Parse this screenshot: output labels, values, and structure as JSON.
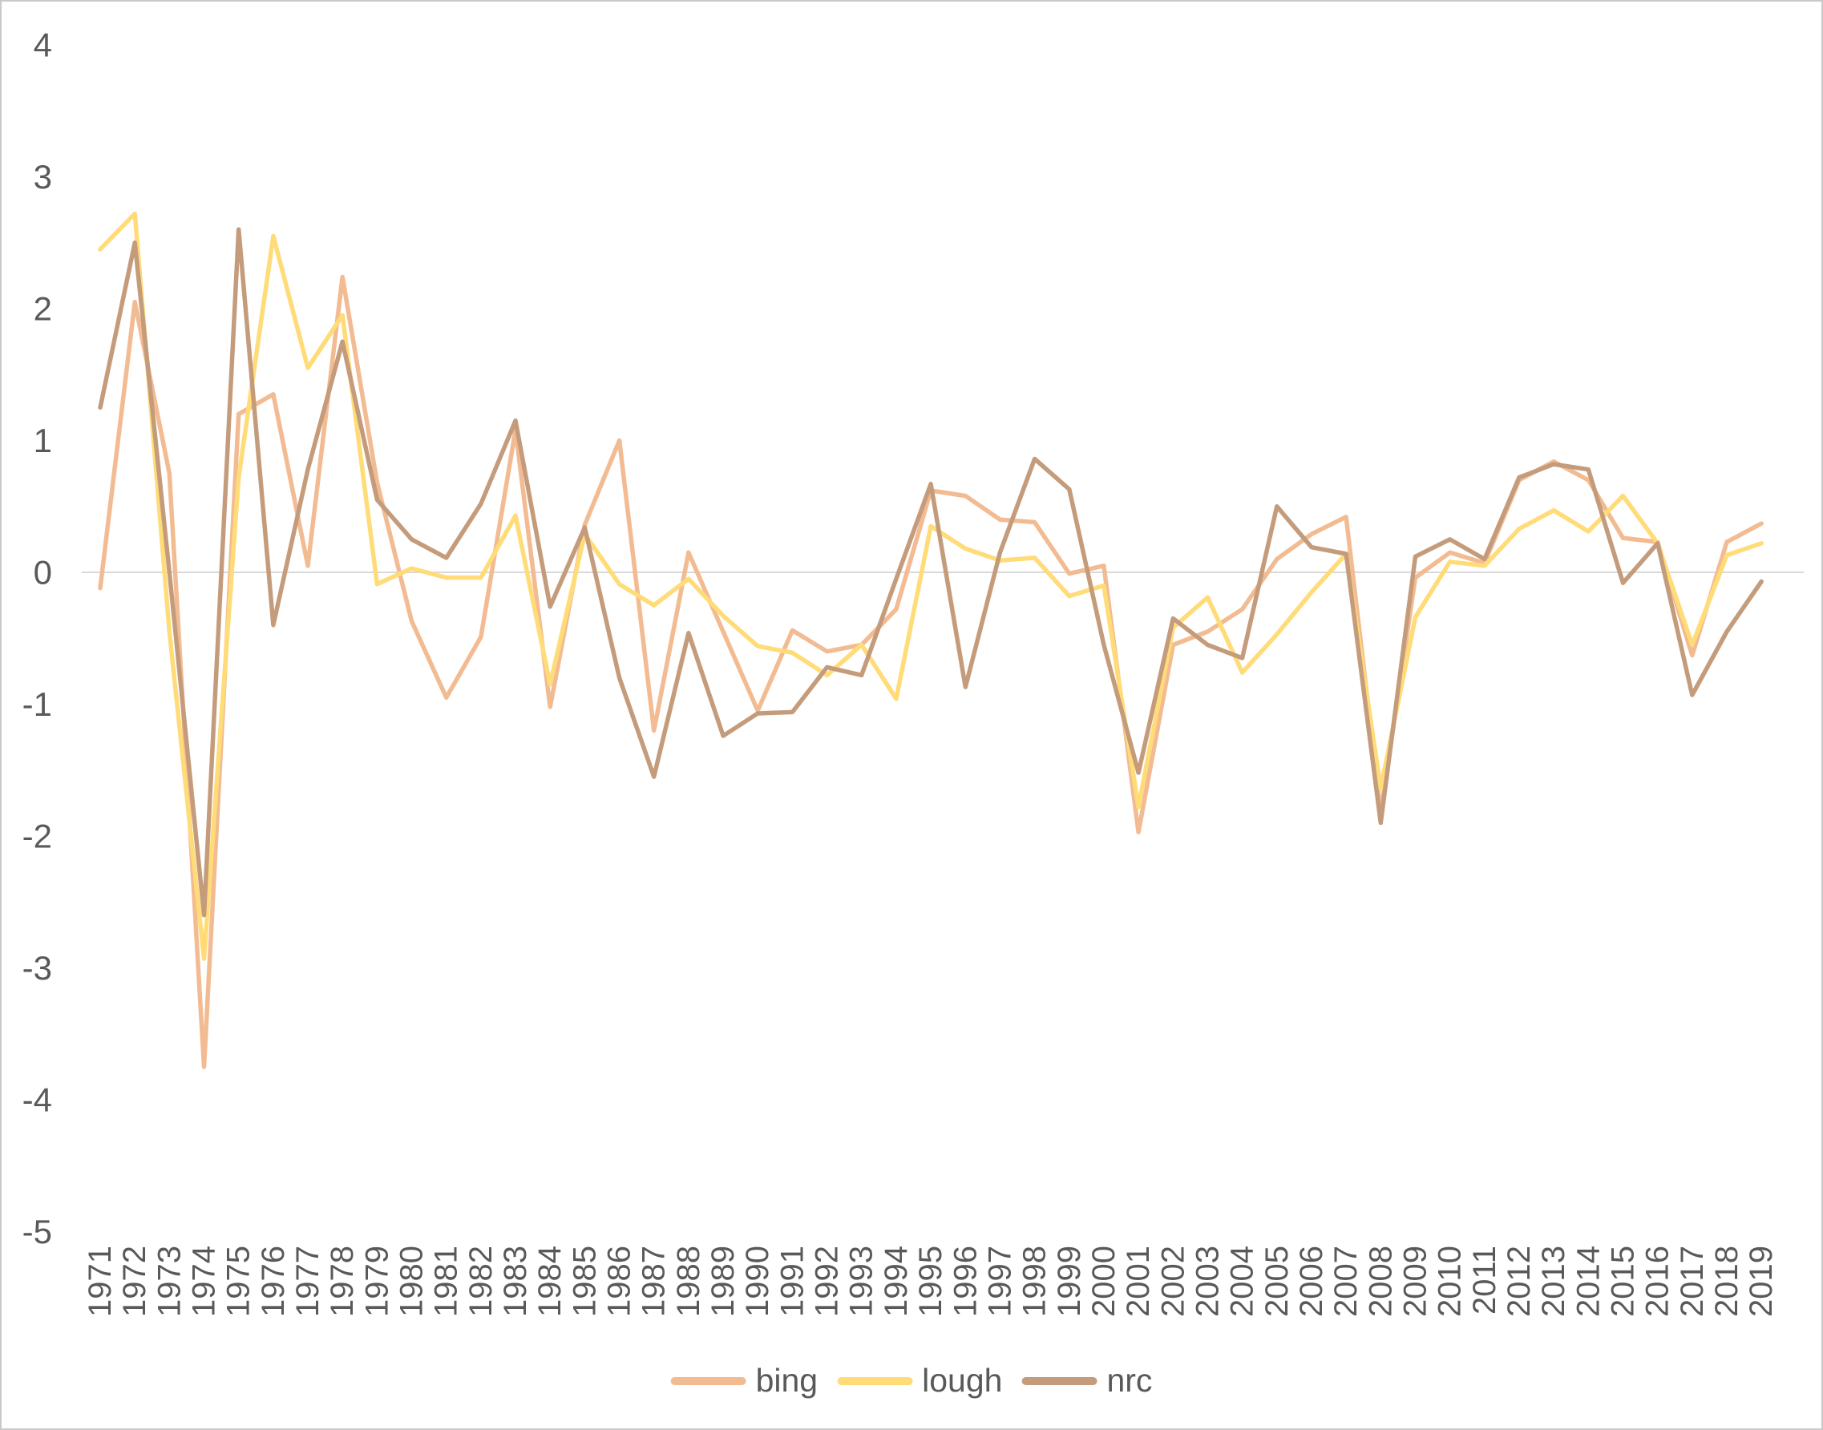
{
  "chart_data": {
    "type": "line",
    "title": "",
    "xlabel": "",
    "ylabel": "",
    "x": [
      1971,
      1972,
      1973,
      1974,
      1975,
      1976,
      1977,
      1978,
      1979,
      1980,
      1981,
      1982,
      1983,
      1984,
      1985,
      1986,
      1987,
      1988,
      1989,
      1990,
      1991,
      1992,
      1993,
      1994,
      1995,
      1996,
      1997,
      1998,
      1999,
      2000,
      2001,
      2002,
      2003,
      2004,
      2005,
      2006,
      2007,
      2008,
      2009,
      2010,
      2011,
      2012,
      2013,
      2014,
      2015,
      2016,
      2017,
      2018,
      2019
    ],
    "series": [
      {
        "name": "bing",
        "color": "#F2BB92",
        "values": [
          -0.12,
          2.05,
          0.75,
          -3.75,
          1.2,
          1.35,
          0.05,
          2.24,
          0.68,
          -0.37,
          -0.95,
          -0.49,
          1.08,
          -1.02,
          0.36,
          1.0,
          -1.2,
          0.15,
          -0.45,
          -1.05,
          -0.44,
          -0.6,
          -0.55,
          -0.28,
          0.62,
          0.58,
          0.4,
          0.38,
          -0.01,
          0.05,
          -1.97,
          -0.55,
          -0.45,
          -0.28,
          0.1,
          0.29,
          0.42,
          -1.82,
          -0.04,
          0.15,
          0.07,
          0.7,
          0.84,
          0.7,
          0.26,
          0.23,
          -0.63,
          0.23,
          0.37
        ]
      },
      {
        "name": "lough",
        "color": "#FFDC78",
        "values": [
          2.45,
          2.72,
          -0.45,
          -2.93,
          0.72,
          2.55,
          1.55,
          1.95,
          -0.09,
          0.03,
          -0.04,
          -0.04,
          0.43,
          -0.85,
          0.29,
          -0.09,
          -0.25,
          -0.05,
          -0.33,
          -0.56,
          -0.61,
          -0.78,
          -0.55,
          -0.96,
          0.35,
          0.18,
          0.09,
          0.11,
          -0.18,
          -0.1,
          -1.78,
          -0.42,
          -0.19,
          -0.76,
          -0.47,
          -0.15,
          0.14,
          -1.64,
          -0.34,
          0.08,
          0.05,
          0.33,
          0.47,
          0.31,
          0.58,
          0.22,
          -0.55,
          0.13,
          0.22
        ]
      },
      {
        "name": "nrc",
        "color": "#C49C7C",
        "values": [
          1.25,
          2.5,
          0.0,
          -2.6,
          2.6,
          -0.4,
          0.78,
          1.75,
          0.55,
          0.25,
          0.11,
          0.52,
          1.15,
          -0.26,
          0.34,
          -0.8,
          -1.55,
          -0.46,
          -1.24,
          -1.07,
          -1.06,
          -0.72,
          -0.78,
          -0.05,
          0.67,
          -0.87,
          0.15,
          0.86,
          0.63,
          -0.55,
          -1.52,
          -0.35,
          -0.55,
          -0.65,
          0.5,
          0.19,
          0.14,
          -1.9,
          0.12,
          0.25,
          0.1,
          0.72,
          0.82,
          0.78,
          -0.08,
          0.22,
          -0.93,
          -0.45,
          -0.07
        ]
      }
    ],
    "ylim": [
      -5,
      4
    ],
    "yticks": [
      "4",
      "3",
      "2",
      "1",
      "0",
      "-1",
      "-2",
      "-3",
      "-4",
      "-5"
    ],
    "ytick_values": [
      4,
      3,
      2,
      1,
      0,
      -1,
      -2,
      -3,
      -4,
      -5
    ],
    "grid": "zero-line-only",
    "gridline_color": "#D9D9D9",
    "axis_text_color": "#595959",
    "legend_position": "bottom-center"
  },
  "legend": {
    "items": [
      {
        "label": "bing",
        "color": "#F2BB92"
      },
      {
        "label": "lough",
        "color": "#FFDC78"
      },
      {
        "label": "nrc",
        "color": "#C49C7C"
      }
    ]
  }
}
